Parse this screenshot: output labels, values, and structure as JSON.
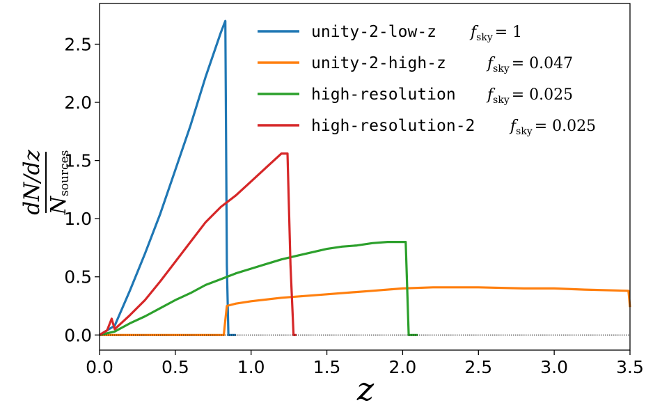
{
  "chart_data": {
    "type": "line",
    "xlabel": "z",
    "ylabel_numerator": "dN/dz",
    "ylabel_denominator_symbol": "N",
    "ylabel_denominator_subscript": "sources",
    "xlim": [
      0.0,
      3.5
    ],
    "ylim": [
      -0.13,
      2.85
    ],
    "xticks": [
      0.0,
      0.5,
      1.0,
      1.5,
      2.0,
      2.5,
      3.0,
      3.5
    ],
    "xtick_labels": [
      "0.0",
      "0.5",
      "1.0",
      "1.5",
      "2.0",
      "2.5",
      "3.0",
      "3.5"
    ],
    "yticks": [
      0.0,
      0.5,
      1.0,
      1.5,
      2.0,
      2.5
    ],
    "ytick_labels": [
      "0.0",
      "0.5",
      "1.0",
      "1.5",
      "2.0",
      "2.5"
    ],
    "grid": false,
    "zero_line": true,
    "legend_position": "top-right",
    "series": [
      {
        "name": "unity-2-low-z",
        "fsky_label": "= 1",
        "color": "#1f77b4",
        "x": [
          0.0,
          0.1,
          0.2,
          0.3,
          0.4,
          0.5,
          0.6,
          0.7,
          0.8,
          0.83,
          0.84,
          0.85,
          0.9
        ],
        "y": [
          0.0,
          0.08,
          0.38,
          0.7,
          1.04,
          1.42,
          1.8,
          2.22,
          2.6,
          2.7,
          0.6,
          0.0,
          0.0
        ]
      },
      {
        "name": "unity-2-high-z",
        "fsky_label": "= 0.047",
        "color": "#ff7f0e",
        "x": [
          0.0,
          0.82,
          0.83,
          0.84,
          0.9,
          1.0,
          1.2,
          1.5,
          1.8,
          2.0,
          2.2,
          2.5,
          2.8,
          3.0,
          3.2,
          3.49,
          3.5
        ],
        "y": [
          0.0,
          0.0,
          0.13,
          0.25,
          0.27,
          0.29,
          0.32,
          0.35,
          0.38,
          0.4,
          0.41,
          0.41,
          0.4,
          0.4,
          0.39,
          0.38,
          0.24
        ]
      },
      {
        "name": "high-resolution",
        "fsky_label": "= 0.025",
        "color": "#2ca02c",
        "x": [
          0.0,
          0.1,
          0.2,
          0.3,
          0.4,
          0.5,
          0.6,
          0.7,
          0.8,
          0.9,
          1.0,
          1.1,
          1.2,
          1.3,
          1.4,
          1.5,
          1.6,
          1.7,
          1.8,
          1.9,
          2.0,
          2.02,
          2.04,
          2.1
        ],
        "y": [
          0.0,
          0.03,
          0.1,
          0.16,
          0.23,
          0.3,
          0.36,
          0.43,
          0.48,
          0.53,
          0.57,
          0.61,
          0.65,
          0.68,
          0.71,
          0.74,
          0.76,
          0.77,
          0.79,
          0.8,
          0.8,
          0.8,
          0.0,
          0.0
        ]
      },
      {
        "name": "high-resolution-2",
        "fsky_label": "= 0.025",
        "color": "#d62728",
        "x": [
          0.0,
          0.05,
          0.08,
          0.1,
          0.2,
          0.3,
          0.4,
          0.5,
          0.6,
          0.7,
          0.8,
          0.9,
          1.0,
          1.1,
          1.2,
          1.24,
          1.26,
          1.28,
          1.3
        ],
        "y": [
          0.0,
          0.04,
          0.14,
          0.05,
          0.17,
          0.3,
          0.46,
          0.63,
          0.8,
          0.97,
          1.1,
          1.2,
          1.32,
          1.44,
          1.56,
          1.56,
          0.6,
          0.0,
          0.0
        ]
      }
    ]
  }
}
